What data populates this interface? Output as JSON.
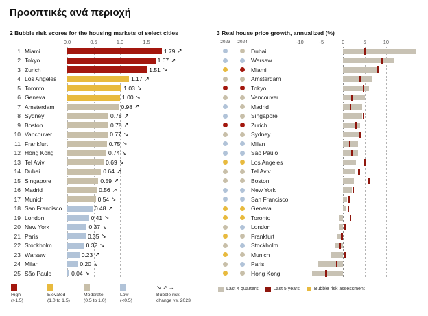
{
  "page": {
    "title": "Προοπτικές ανά περιοχή"
  },
  "colors": {
    "high": "#a3170e",
    "elevated": "#e8ba3e",
    "moderate": "#c8bfa9",
    "low": "#b1c3d8",
    "bar_4q": "#c8c2b4",
    "mark_5y": "#8f160d"
  },
  "chart_data": [
    {
      "type": "bar",
      "title": "2 Bubble risk scores for the housing markets of select cities",
      "xlabel": "",
      "ylabel": "",
      "xlim": [
        0,
        1.9
      ],
      "x_ticks": [
        "0.0",
        "0.5",
        "1.0",
        "1.5"
      ],
      "grid": "dotted-vertical",
      "rows": [
        {
          "rank": 1,
          "city": "Miami",
          "value": 1.79,
          "label": "1.79",
          "arrow": "↗",
          "category": "high"
        },
        {
          "rank": 2,
          "city": "Tokyo",
          "value": 1.67,
          "label": "1.67",
          "arrow": "↗",
          "category": "high"
        },
        {
          "rank": 3,
          "city": "Zurich",
          "value": 1.51,
          "label": "1.51",
          "arrow": "↘",
          "category": "high"
        },
        {
          "rank": 4,
          "city": "Los Angeles",
          "value": 1.17,
          "label": "1.17",
          "arrow": "↗",
          "category": "elevated"
        },
        {
          "rank": 5,
          "city": "Toronto",
          "value": 1.03,
          "label": "1.03",
          "arrow": "↘",
          "category": "elevated"
        },
        {
          "rank": 6,
          "city": "Geneva",
          "value": 1.0,
          "label": "1.00",
          "arrow": "↘",
          "category": "elevated"
        },
        {
          "rank": 7,
          "city": "Amsterdam",
          "value": 0.98,
          "label": "0.98",
          "arrow": "↗",
          "category": "moderate"
        },
        {
          "rank": 8,
          "city": "Sydney",
          "value": 0.78,
          "label": "0.78",
          "arrow": "↗",
          "category": "moderate"
        },
        {
          "rank": 9,
          "city": "Boston",
          "value": 0.78,
          "label": "0.78",
          "arrow": "↗",
          "category": "moderate"
        },
        {
          "rank": 10,
          "city": "Vancouver",
          "value": 0.77,
          "label": "0.77",
          "arrow": "↘",
          "category": "moderate"
        },
        {
          "rank": 11,
          "city": "Frankfurt",
          "value": 0.75,
          "label": "0.75",
          "arrow": "↘",
          "category": "moderate"
        },
        {
          "rank": 12,
          "city": "Hong Kong",
          "value": 0.74,
          "label": "0.74",
          "arrow": "↘",
          "category": "moderate"
        },
        {
          "rank": 13,
          "city": "Tel Aviv",
          "value": 0.69,
          "label": "0.69",
          "arrow": "↘",
          "category": "moderate"
        },
        {
          "rank": 14,
          "city": "Dubai",
          "value": 0.64,
          "label": "0.64",
          "arrow": "↗",
          "category": "moderate"
        },
        {
          "rank": 15,
          "city": "Singapore",
          "value": 0.59,
          "label": "0.59",
          "arrow": "↗",
          "category": "moderate"
        },
        {
          "rank": 16,
          "city": "Madrid",
          "value": 0.56,
          "label": "0.56",
          "arrow": "↗",
          "category": "moderate"
        },
        {
          "rank": 17,
          "city": "Munich",
          "value": 0.54,
          "label": "0.54",
          "arrow": "↘",
          "category": "moderate"
        },
        {
          "rank": 18,
          "city": "San Francisco",
          "value": 0.48,
          "label": "0.48",
          "arrow": "↗",
          "category": "low"
        },
        {
          "rank": 19,
          "city": "London",
          "value": 0.41,
          "label": "0.41",
          "arrow": "↘",
          "category": "low"
        },
        {
          "rank": 20,
          "city": "New York",
          "value": 0.37,
          "label": "0.37",
          "arrow": "↘",
          "category": "low"
        },
        {
          "rank": 21,
          "city": "Paris",
          "value": 0.35,
          "label": "0.35",
          "arrow": "↘",
          "category": "low"
        },
        {
          "rank": 22,
          "city": "Stockholm",
          "value": 0.32,
          "label": "0.32",
          "arrow": "↘",
          "category": "low"
        },
        {
          "rank": 23,
          "city": "Warsaw",
          "value": 0.23,
          "label": "0.23",
          "arrow": "↗",
          "category": "low"
        },
        {
          "rank": 24,
          "city": "Milan",
          "value": 0.2,
          "label": "0.20",
          "arrow": "↘",
          "category": "low"
        },
        {
          "rank": 25,
          "city": "São Paulo",
          "value": 0.04,
          "label": "0.04",
          "arrow": "↘",
          "category": "low"
        }
      ],
      "legend": [
        {
          "label": "High",
          "sub": "(>1.5)",
          "color": "high"
        },
        {
          "label": "Elevated",
          "sub": "(1.0 to 1.5)",
          "color": "elevated"
        },
        {
          "label": "Moderate",
          "sub": "(0.5 to 1.0)",
          "color": "moderate"
        },
        {
          "label": "Low",
          "sub": "(<0.5)",
          "color": "low"
        },
        {
          "symbols": "↘ ↗ →",
          "label": "Bubble risk",
          "sub": "change vs. 2023"
        }
      ]
    },
    {
      "type": "bar",
      "title": "3 Real house price growth, annualized (%)",
      "xlabel": "",
      "ylabel": "",
      "xlim": [
        -11.5,
        17.5
      ],
      "x_ticks": [
        "-10",
        "-5",
        "0",
        "5",
        "10"
      ],
      "grid": "dotted-vertical",
      "col_headers": [
        "2023",
        "2024"
      ],
      "rows": [
        {
          "city": "Dubai",
          "assessment_2023": "low",
          "assessment_2024": "moderate",
          "last_4_quarters": 17,
          "last_5_years": 5
        },
        {
          "city": "Warsaw",
          "assessment_2023": "low",
          "assessment_2024": "low",
          "last_4_quarters": 12,
          "last_5_years": 9
        },
        {
          "city": "Miami",
          "assessment_2023": "elevated",
          "assessment_2024": "high",
          "last_4_quarters": 8,
          "last_5_years": 8
        },
        {
          "city": "Amsterdam",
          "assessment_2023": "moderate",
          "assessment_2024": "moderate",
          "last_4_quarters": 6.7,
          "last_5_years": 4
        },
        {
          "city": "Tokyo",
          "assessment_2023": "high",
          "assessment_2024": "high",
          "last_4_quarters": 6,
          "last_5_years": 4.7
        },
        {
          "city": "Vancouver",
          "assessment_2023": "moderate",
          "assessment_2024": "moderate",
          "last_4_quarters": 5,
          "last_5_years": 2
        },
        {
          "city": "Madrid",
          "assessment_2023": "low",
          "assessment_2024": "moderate",
          "last_4_quarters": 4.5,
          "last_5_years": 1.7
        },
        {
          "city": "Singapore",
          "assessment_2023": "low",
          "assessment_2024": "moderate",
          "last_4_quarters": 4.5,
          "last_5_years": 4.7
        },
        {
          "city": "Zurich",
          "assessment_2023": "high",
          "assessment_2024": "high",
          "last_4_quarters": 4,
          "last_5_years": 3
        },
        {
          "city": "Sydney",
          "assessment_2023": "moderate",
          "assessment_2024": "moderate",
          "last_4_quarters": 4,
          "last_5_years": 3.8
        },
        {
          "city": "Milan",
          "assessment_2023": "low",
          "assessment_2024": "low",
          "last_4_quarters": 3.5,
          "last_5_years": 1.5
        },
        {
          "city": "São Paulo",
          "assessment_2023": "low",
          "assessment_2024": "low",
          "last_4_quarters": 3.5,
          "last_5_years": 2
        },
        {
          "city": "Los Angeles",
          "assessment_2023": "elevated",
          "assessment_2024": "elevated",
          "last_4_quarters": 3,
          "last_5_years": 5
        },
        {
          "city": "Tel Aviv",
          "assessment_2023": "moderate",
          "assessment_2024": "moderate",
          "last_4_quarters": 2.7,
          "last_5_years": 3.7
        },
        {
          "city": "Boston",
          "assessment_2023": "moderate",
          "assessment_2024": "moderate",
          "last_4_quarters": 2.5,
          "last_5_years": 6
        },
        {
          "city": "New York",
          "assessment_2023": "low",
          "assessment_2024": "low",
          "last_4_quarters": 2,
          "last_5_years": 2.3
        },
        {
          "city": "San Francisco",
          "assessment_2023": "low",
          "assessment_2024": "low",
          "last_4_quarters": 1,
          "last_5_years": 1.3
        },
        {
          "city": "Geneva",
          "assessment_2023": "elevated",
          "assessment_2024": "elevated",
          "last_4_quarters": 0.7,
          "last_5_years": 1.2
        },
        {
          "city": "Toronto",
          "assessment_2023": "elevated",
          "assessment_2024": "elevated",
          "last_4_quarters": -1,
          "last_5_years": 1.7
        },
        {
          "city": "London",
          "assessment_2023": "moderate",
          "assessment_2024": "low",
          "last_4_quarters": -1,
          "last_5_years": 0.3
        },
        {
          "city": "Frankfurt",
          "assessment_2023": "elevated",
          "assessment_2024": "moderate",
          "last_4_quarters": -1.5,
          "last_5_years": -0.3
        },
        {
          "city": "Stockholm",
          "assessment_2023": "moderate",
          "assessment_2024": "low",
          "last_4_quarters": -2,
          "last_5_years": -0.8
        },
        {
          "city": "Munich",
          "assessment_2023": "elevated",
          "assessment_2024": "moderate",
          "last_4_quarters": -2.7,
          "last_5_years": 0.3
        },
        {
          "city": "Paris",
          "assessment_2023": "moderate",
          "assessment_2024": "low",
          "last_4_quarters": -6,
          "last_5_years": -1.5
        },
        {
          "city": "Hong Kong",
          "assessment_2023": "elevated",
          "assessment_2024": "moderate",
          "last_4_quarters": -7.2,
          "last_5_years": -4
        }
      ],
      "legend": [
        {
          "label": "Last 4 quarters",
          "swatch": "bar_4q",
          "shape": "rect"
        },
        {
          "label": "Last 5 years",
          "swatch": "mark_5y",
          "shape": "rect"
        },
        {
          "label": "Bubble risk assessment",
          "swatch": "elevated",
          "shape": "dot"
        }
      ]
    }
  ]
}
